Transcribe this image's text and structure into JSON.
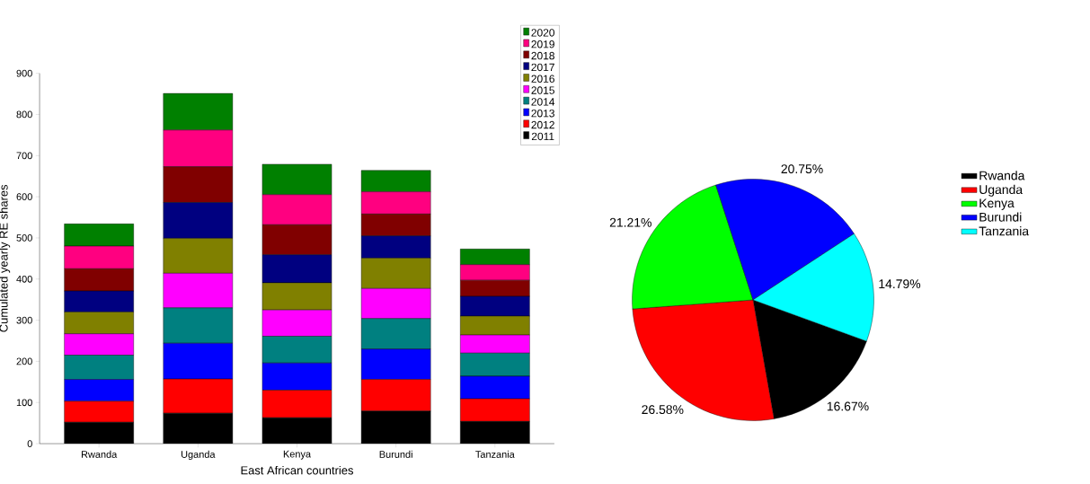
{
  "chart_data": [
    {
      "type": "bar",
      "stacked": true,
      "xlabel": "East African countries",
      "ylabel": "Cumulated yearly RE shares",
      "categories": [
        "Rwanda",
        "Uganda",
        "Kenya",
        "Burundi",
        "Tanzania"
      ],
      "ylim": [
        0,
        900
      ],
      "yticks": [
        0,
        100,
        200,
        300,
        400,
        500,
        600,
        700,
        800,
        900
      ],
      "legend": "top right",
      "series": [
        {
          "name": "2011",
          "color": "#000000",
          "values": [
            52,
            74,
            63,
            79,
            54
          ]
        },
        {
          "name": "2012",
          "color": "#ff0000",
          "values": [
            51,
            83,
            67,
            77,
            55
          ]
        },
        {
          "name": "2013",
          "color": "#0000ff",
          "values": [
            53,
            87,
            66,
            74,
            55
          ]
        },
        {
          "name": "2014",
          "color": "#008080",
          "values": [
            59,
            86,
            65,
            74,
            56
          ]
        },
        {
          "name": "2015",
          "color": "#ff00ff",
          "values": [
            52,
            84,
            64,
            73,
            44
          ]
        },
        {
          "name": "2016",
          "color": "#808000",
          "values": [
            53,
            85,
            66,
            74,
            46
          ]
        },
        {
          "name": "2017",
          "color": "#000080",
          "values": [
            51,
            87,
            68,
            54,
            48
          ]
        },
        {
          "name": "2018",
          "color": "#800000",
          "values": [
            54,
            87,
            73,
            53,
            39
          ]
        },
        {
          "name": "2019",
          "color": "#ff0080",
          "values": [
            55,
            89,
            73,
            54,
            38
          ]
        },
        {
          "name": "2020",
          "color": "#008000",
          "values": [
            54,
            89,
            74,
            52,
            38
          ]
        }
      ]
    },
    {
      "type": "pie",
      "categories": [
        "Rwanda",
        "Uganda",
        "Kenya",
        "Burundi",
        "Tanzania"
      ],
      "values": [
        16.67,
        26.58,
        21.21,
        20.75,
        14.79
      ],
      "colors": [
        "#000000",
        "#ff0000",
        "#00ff00",
        "#0000ff",
        "#00ffff"
      ],
      "value_labels": [
        "16.67%",
        "26.58%",
        "21.21%",
        "20.75%",
        "14.79%"
      ],
      "legend": "right"
    }
  ]
}
